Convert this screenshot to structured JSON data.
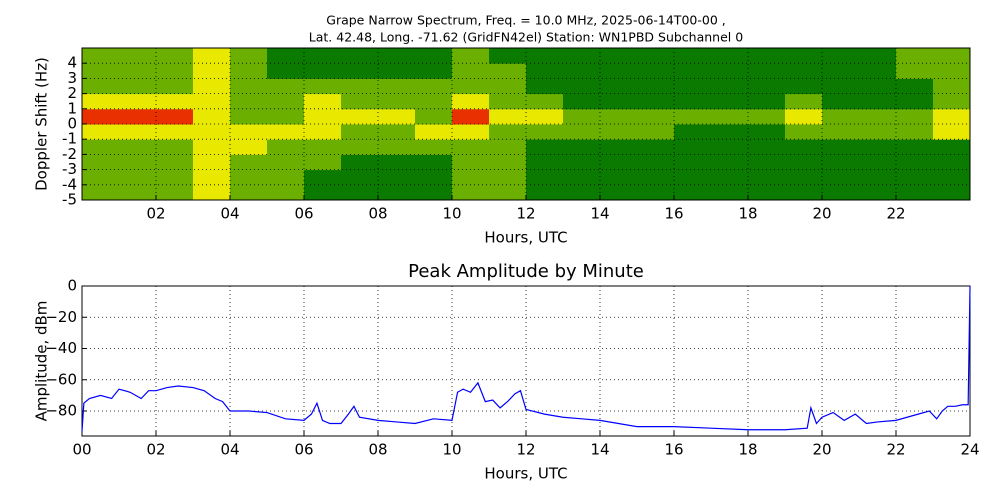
{
  "chart_data": [
    {
      "type": "heatmap",
      "title": [
        "Grape Narrow Spectrum, Freq. = 10.0 MHz, 2025-06-14T00-00 ,",
        "Lat.  42.48, Long. -71.62 (GridFN42el) Station: WN1PBD Subchannel 0"
      ],
      "xlabel": "Hours, UTC",
      "ylabel": "Doppler Shift (Hz)",
      "xlim": [
        0,
        24
      ],
      "ylim": [
        -5,
        5
      ],
      "xticks": [
        {
          "value": 2,
          "label": "02"
        },
        {
          "value": 4,
          "label": "04"
        },
        {
          "value": 6,
          "label": "06"
        },
        {
          "value": 8,
          "label": "08"
        },
        {
          "value": 10,
          "label": "10"
        },
        {
          "value": 12,
          "label": "12"
        },
        {
          "value": 14,
          "label": "14"
        },
        {
          "value": 16,
          "label": "16"
        },
        {
          "value": 18,
          "label": "18"
        },
        {
          "value": 20,
          "label": "20"
        },
        {
          "value": 22,
          "label": "22"
        }
      ],
      "yticks": [
        -5,
        -4,
        -3,
        -2,
        -1,
        0,
        1,
        2,
        3,
        4
      ],
      "grid": true,
      "colors": [
        "#0a7a00",
        "#6bb000",
        "#e8e800",
        "#e83000"
      ],
      "xbins": [
        0,
        1,
        2,
        3,
        4,
        5,
        6,
        7,
        8,
        9,
        10,
        11,
        12,
        13,
        14,
        15,
        16,
        17,
        18,
        19,
        20,
        21,
        22,
        23,
        24
      ],
      "ybins": [
        -5,
        -4,
        -3,
        -2,
        -1,
        0,
        1,
        2,
        3,
        4,
        5
      ],
      "z": [
        [
          1,
          1,
          1,
          2,
          1,
          1,
          0,
          0,
          0,
          0,
          1,
          1,
          0,
          0,
          0,
          0,
          0,
          0,
          0,
          0,
          0,
          0,
          0,
          0
        ],
        [
          1,
          1,
          1,
          2,
          1,
          1,
          0,
          0,
          0,
          0,
          1,
          1,
          0,
          0,
          0,
          0,
          0,
          0,
          0,
          0,
          0,
          0,
          0,
          0
        ],
        [
          1,
          1,
          1,
          2,
          1,
          1,
          1,
          0,
          0,
          0,
          1,
          1,
          0,
          0,
          0,
          0,
          0,
          0,
          0,
          0,
          0,
          0,
          0,
          0
        ],
        [
          1,
          1,
          1,
          2,
          2,
          1,
          1,
          1,
          1,
          1,
          1,
          1,
          0,
          0,
          0,
          0,
          0,
          0,
          0,
          0,
          0,
          0,
          0,
          0
        ],
        [
          2,
          2,
          2,
          2,
          2,
          2,
          2,
          1,
          1,
          2,
          2,
          1,
          1,
          1,
          1,
          1,
          0,
          0,
          0,
          1,
          1,
          1,
          1,
          2
        ],
        [
          3,
          3,
          3,
          2,
          1,
          1,
          2,
          2,
          2,
          1,
          3,
          2,
          2,
          1,
          1,
          1,
          1,
          1,
          1,
          2,
          1,
          1,
          1,
          2
        ],
        [
          2,
          2,
          2,
          2,
          1,
          1,
          2,
          1,
          1,
          1,
          2,
          1,
          1,
          0,
          0,
          0,
          0,
          0,
          0,
          1,
          0,
          0,
          0,
          1
        ],
        [
          1,
          1,
          1,
          2,
          1,
          1,
          1,
          1,
          1,
          1,
          1,
          1,
          0,
          0,
          0,
          0,
          0,
          0,
          0,
          0,
          0,
          0,
          0,
          1
        ],
        [
          1,
          1,
          1,
          2,
          1,
          0,
          0,
          0,
          0,
          0,
          1,
          1,
          0,
          0,
          0,
          0,
          0,
          0,
          0,
          0,
          0,
          0,
          1,
          1
        ],
        [
          1,
          1,
          1,
          2,
          1,
          0,
          0,
          0,
          0,
          0,
          1,
          0,
          0,
          0,
          0,
          0,
          0,
          0,
          0,
          0,
          0,
          0,
          1,
          1
        ]
      ]
    },
    {
      "type": "line",
      "title": "Peak Amplitude by Minute",
      "xlabel": "Hours, UTC",
      "ylabel": "Amplitude, dBm",
      "xlim": [
        0,
        24
      ],
      "ylim": [
        -96,
        0
      ],
      "xticks": [
        {
          "value": 0,
          "label": "00"
        },
        {
          "value": 2,
          "label": "02"
        },
        {
          "value": 4,
          "label": "04"
        },
        {
          "value": 6,
          "label": "06"
        },
        {
          "value": 8,
          "label": "08"
        },
        {
          "value": 10,
          "label": "10"
        },
        {
          "value": 12,
          "label": "12"
        },
        {
          "value": 14,
          "label": "14"
        },
        {
          "value": 16,
          "label": "16"
        },
        {
          "value": 18,
          "label": "18"
        },
        {
          "value": 20,
          "label": "20"
        },
        {
          "value": 22,
          "label": "22"
        },
        {
          "value": 24,
          "label": "24"
        }
      ],
      "yticks": [
        {
          "value": -80,
          "label": "−80"
        },
        {
          "value": -60,
          "label": "−60"
        },
        {
          "value": -40,
          "label": "−40"
        },
        {
          "value": -20,
          "label": "−20"
        },
        0
      ],
      "grid": true,
      "x": [
        0,
        0.05,
        0.2,
        0.5,
        0.8,
        1.0,
        1.3,
        1.6,
        1.8,
        2.0,
        2.3,
        2.6,
        3.0,
        3.3,
        3.6,
        3.8,
        4.0,
        4.5,
        5.0,
        5.5,
        6.0,
        6.2,
        6.35,
        6.5,
        6.7,
        7.0,
        7.2,
        7.35,
        7.5,
        8.0,
        8.5,
        9.0,
        9.5,
        10.0,
        10.15,
        10.3,
        10.5,
        10.7,
        10.9,
        11.1,
        11.3,
        11.5,
        11.7,
        11.85,
        12.0,
        12.5,
        13.0,
        13.5,
        14.0,
        14.5,
        15.0,
        16.0,
        17.0,
        18.0,
        19.0,
        19.6,
        19.7,
        19.85,
        20.0,
        20.3,
        20.6,
        20.9,
        21.2,
        21.5,
        22.0,
        22.3,
        22.6,
        22.9,
        23.1,
        23.25,
        23.4,
        23.6,
        23.8,
        23.95,
        24.0
      ],
      "series": [
        {
          "name": "Peak Amplitude",
          "color": "#0000ff",
          "values": [
            -93,
            -75,
            -72,
            -70,
            -72,
            -66,
            -68,
            -72,
            -67,
            -67,
            -65,
            -64,
            -65,
            -67,
            -72,
            -74,
            -80,
            -80,
            -81,
            -85,
            -86,
            -82,
            -75,
            -86,
            -88,
            -88,
            -82,
            -77,
            -84,
            -86,
            -87,
            -88,
            -85,
            -86,
            -68,
            -66,
            -68,
            -62,
            -74,
            -73,
            -78,
            -74,
            -69,
            -67,
            -79,
            -82,
            -84,
            -85,
            -86,
            -88,
            -90,
            -90,
            -91,
            -92,
            -92,
            -91,
            -78,
            -88,
            -84,
            -81,
            -86,
            -82,
            -88,
            -87,
            -86,
            -84,
            -82,
            -80,
            -85,
            -80,
            -77,
            -77,
            -76,
            -76,
            0
          ]
        }
      ]
    }
  ]
}
